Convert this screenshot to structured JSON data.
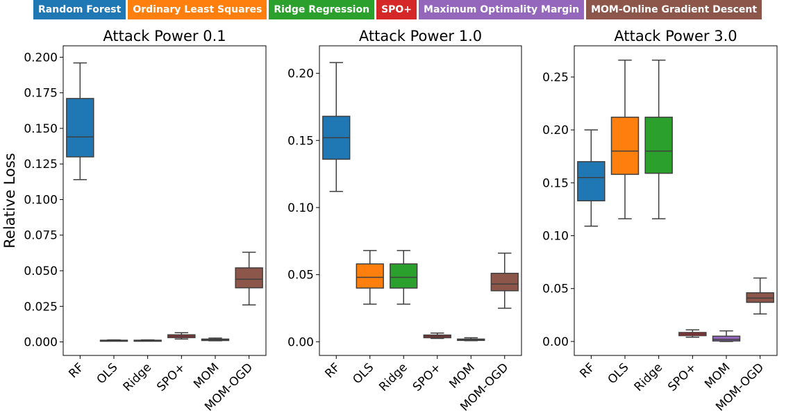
{
  "legend": [
    {
      "label": "Random Forest",
      "color": "#1f77b4"
    },
    {
      "label": "Ordinary Least Squares",
      "color": "#ff7f0e"
    },
    {
      "label": "Ridge Regression",
      "color": "#2ca02c"
    },
    {
      "label": "SPO+",
      "color": "#d62728"
    },
    {
      "label": "Maximum Optimality Margin",
      "color": "#9467bd"
    },
    {
      "label": "MOM-Online Gradient Descent",
      "color": "#8c564b"
    }
  ],
  "chart_data": [
    {
      "type": "box",
      "title": "Attack Power 0.1",
      "ylabel": "Relative Loss",
      "categories": [
        "RF",
        "OLS",
        "Ridge",
        "SPO+",
        "MOM",
        "MOM-OGD"
      ],
      "colors": [
        "#1f77b4",
        "#ff7f0e",
        "#2ca02c",
        "#d62728",
        "#9467bd",
        "#8c564b"
      ],
      "ylim": [
        -0.0095,
        0.208
      ],
      "yticks": [
        0.0,
        0.025,
        0.05,
        0.075,
        0.1,
        0.125,
        0.15,
        0.175,
        0.2
      ],
      "ytick_labels": [
        "0.000",
        "0.025",
        "0.050",
        "0.075",
        "0.100",
        "0.125",
        "0.150",
        "0.175",
        "0.200"
      ],
      "boxes": [
        {
          "whisker_low": 0.114,
          "q1": 0.13,
          "median": 0.144,
          "q3": 0.171,
          "whisker_high": 0.196
        },
        {
          "whisker_low": 0.0006,
          "q1": 0.0008,
          "median": 0.001,
          "q3": 0.0012,
          "whisker_high": 0.0014
        },
        {
          "whisker_low": 0.0006,
          "q1": 0.0008,
          "median": 0.001,
          "q3": 0.0012,
          "whisker_high": 0.0014
        },
        {
          "whisker_low": 0.002,
          "q1": 0.003,
          "median": 0.004,
          "q3": 0.005,
          "whisker_high": 0.0065
        },
        {
          "whisker_low": 0.0008,
          "q1": 0.001,
          "median": 0.0015,
          "q3": 0.002,
          "whisker_high": 0.0027
        },
        {
          "whisker_low": 0.026,
          "q1": 0.038,
          "median": 0.044,
          "q3": 0.052,
          "whisker_high": 0.063
        }
      ]
    },
    {
      "type": "box",
      "title": "Attack Power 1.0",
      "ylabel": "",
      "categories": [
        "RF",
        "OLS",
        "Ridge",
        "SPO+",
        "MOM",
        "MOM-OGD"
      ],
      "colors": [
        "#1f77b4",
        "#ff7f0e",
        "#2ca02c",
        "#d62728",
        "#9467bd",
        "#8c564b"
      ],
      "ylim": [
        -0.0102,
        0.2205
      ],
      "yticks": [
        0.0,
        0.05,
        0.1,
        0.15,
        0.2
      ],
      "ytick_labels": [
        "0.00",
        "0.05",
        "0.10",
        "0.15",
        "0.20"
      ],
      "boxes": [
        {
          "whisker_low": 0.112,
          "q1": 0.136,
          "median": 0.152,
          "q3": 0.168,
          "whisker_high": 0.208
        },
        {
          "whisker_low": 0.028,
          "q1": 0.04,
          "median": 0.048,
          "q3": 0.058,
          "whisker_high": 0.068
        },
        {
          "whisker_low": 0.028,
          "q1": 0.04,
          "median": 0.048,
          "q3": 0.058,
          "whisker_high": 0.068
        },
        {
          "whisker_low": 0.0025,
          "q1": 0.003,
          "median": 0.004,
          "q3": 0.005,
          "whisker_high": 0.0065
        },
        {
          "whisker_low": 0.0008,
          "q1": 0.001,
          "median": 0.0015,
          "q3": 0.002,
          "whisker_high": 0.003
        },
        {
          "whisker_low": 0.025,
          "q1": 0.038,
          "median": 0.043,
          "q3": 0.051,
          "whisker_high": 0.066
        }
      ]
    },
    {
      "type": "box",
      "title": "Attack Power 3.0",
      "ylabel": "",
      "categories": [
        "RF",
        "OLS",
        "Ridge",
        "SPO+",
        "MOM",
        "MOM-OGD"
      ],
      "colors": [
        "#1f77b4",
        "#ff7f0e",
        "#2ca02c",
        "#d62728",
        "#9467bd",
        "#8c564b"
      ],
      "ylim": [
        -0.0132,
        0.2795
      ],
      "yticks": [
        0.0,
        0.05,
        0.1,
        0.15,
        0.2,
        0.25
      ],
      "ytick_labels": [
        "0.00",
        "0.05",
        "0.10",
        "0.15",
        "0.20",
        "0.25"
      ],
      "boxes": [
        {
          "whisker_low": 0.109,
          "q1": 0.133,
          "median": 0.155,
          "q3": 0.17,
          "whisker_high": 0.2
        },
        {
          "whisker_low": 0.116,
          "q1": 0.158,
          "median": 0.18,
          "q3": 0.212,
          "whisker_high": 0.266
        },
        {
          "whisker_low": 0.116,
          "q1": 0.159,
          "median": 0.18,
          "q3": 0.212,
          "whisker_high": 0.266
        },
        {
          "whisker_low": 0.004,
          "q1": 0.0055,
          "median": 0.007,
          "q3": 0.0085,
          "whisker_high": 0.011
        },
        {
          "whisker_low": 0.0,
          "q1": 0.0005,
          "median": 0.002,
          "q3": 0.005,
          "whisker_high": 0.01
        },
        {
          "whisker_low": 0.026,
          "q1": 0.037,
          "median": 0.041,
          "q3": 0.046,
          "whisker_high": 0.06
        }
      ]
    }
  ]
}
